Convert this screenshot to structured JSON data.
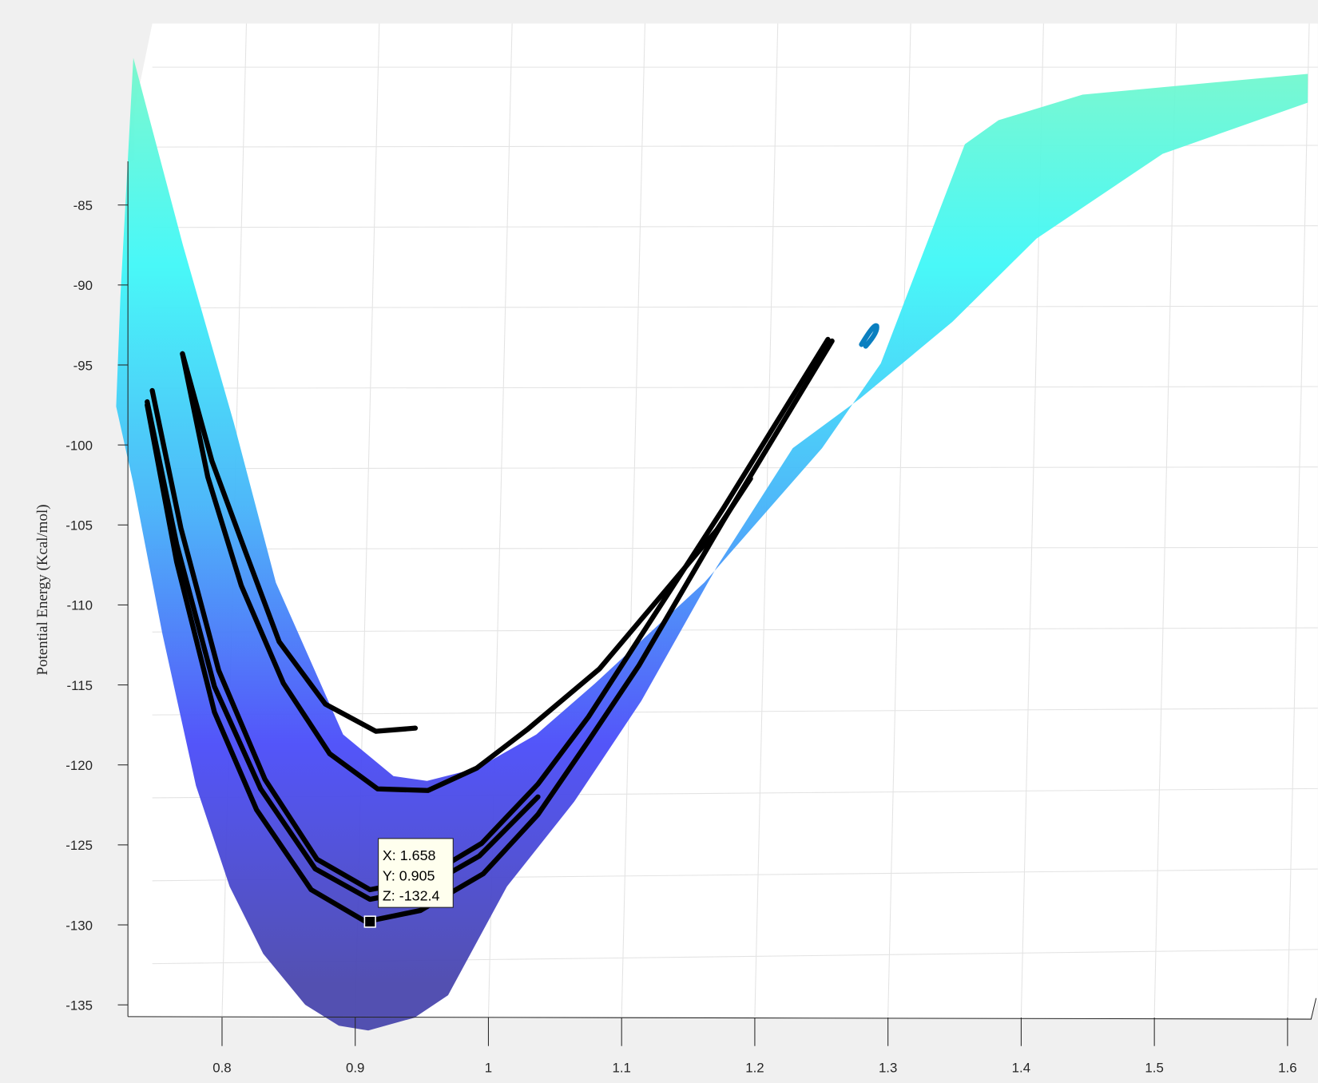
{
  "chart_data": {
    "type": "surface",
    "title": "",
    "xlabel": "",
    "ylabel": "",
    "zlabel": "Potential Energy (Kcal/mol)",
    "x_ticks": [
      "0.8",
      "0.9",
      "1",
      "1.1",
      "1.2",
      "1.3",
      "1.4",
      "1.5",
      "1.6"
    ],
    "x_tick_values": [
      0.8,
      0.9,
      1.0,
      1.1,
      1.2,
      1.3,
      1.4,
      1.5,
      1.6
    ],
    "z_ticks": [
      "-85",
      "-90",
      "-95",
      "-100",
      "-105",
      "-110",
      "-115",
      "-120",
      "-125",
      "-130",
      "-135"
    ],
    "z_tick_values": [
      -85,
      -90,
      -95,
      -100,
      -105,
      -110,
      -115,
      -120,
      -125,
      -130,
      -135
    ],
    "xlim": [
      0.73,
      1.63
    ],
    "zlim": [
      -135.5,
      -82
    ],
    "grid": true,
    "colormap": [
      "#7ff7c4",
      "#3ff8f8",
      "#45b4f9",
      "#4a4cf9",
      "#4a47ad"
    ],
    "surface_outline": [
      [
        0.7334,
        -75.8
      ],
      [
        0.7706,
        -87.5
      ],
      [
        0.8088,
        -98.6
      ],
      [
        0.8404,
        -108.6
      ],
      [
        0.8909,
        -118.1
      ],
      [
        0.9287,
        -120.7
      ],
      [
        0.9539,
        -121.0
      ],
      [
        0.9918,
        -120.2
      ],
      [
        1.036,
        -118.1
      ],
      [
        1.0801,
        -114.9
      ],
      [
        1.1621,
        -108.6
      ],
      [
        1.2505,
        -100.2
      ],
      [
        1.2946,
        -94.9
      ],
      [
        1.3577,
        -81.2
      ],
      [
        1.383,
        -79.7
      ],
      [
        1.4461,
        -78.1
      ],
      [
        1.6152,
        -76.8
      ],
      [
        1.6152,
        -78.6
      ],
      [
        1.5062,
        -81.8
      ],
      [
        1.4115,
        -87.1
      ],
      [
        1.3484,
        -92.3
      ],
      [
        1.279,
        -97.1
      ],
      [
        1.2285,
        -100.2
      ],
      [
        1.1716,
        -107.6
      ],
      [
        1.1148,
        -116.0
      ],
      [
        1.0644,
        -122.3
      ],
      [
        1.0139,
        -127.6
      ],
      [
        0.9697,
        -134.4
      ],
      [
        0.9445,
        -135.8
      ],
      [
        0.9098,
        -136.6
      ],
      [
        0.8877,
        -136.3
      ],
      [
        0.8625,
        -135.0
      ],
      [
        0.8309,
        -131.8
      ],
      [
        0.8057,
        -127.6
      ],
      [
        0.7804,
        -121.3
      ],
      [
        0.7552,
        -111.8
      ],
      [
        0.7331,
        -102.3
      ],
      [
        0.7205,
        -97.6
      ],
      [
        0.7237,
        -90.7
      ]
    ],
    "trajectories": [
      {
        "points": [
          [
            0.7703,
            -94.3
          ],
          [
            0.7924,
            -101.0
          ],
          [
            0.8177,
            -106.7
          ],
          [
            0.8429,
            -112.3
          ],
          [
            0.8776,
            -116.2
          ],
          [
            0.9155,
            -117.9
          ],
          [
            0.9451,
            -117.7
          ]
        ]
      },
      {
        "points": [
          [
            0.7703,
            -94.3
          ],
          [
            0.7893,
            -102.0
          ],
          [
            0.8145,
            -108.8
          ],
          [
            0.8461,
            -114.9
          ],
          [
            0.8808,
            -119.3
          ],
          [
            0.9168,
            -121.5
          ],
          [
            0.9546,
            -121.6
          ],
          [
            0.9912,
            -120.2
          ],
          [
            1.029,
            -117.8
          ],
          [
            1.0833,
            -114.0
          ],
          [
            1.1716,
            -105.3
          ],
          [
            1.1968,
            -102.1
          ]
        ]
      },
      {
        "points": [
          [
            0.7476,
            -96.6
          ],
          [
            0.7691,
            -105.2
          ],
          [
            0.7975,
            -114.1
          ],
          [
            0.8322,
            -120.9
          ],
          [
            0.8713,
            -125.9
          ],
          [
            0.9111,
            -127.8
          ],
          [
            0.9489,
            -127.2
          ],
          [
            0.995,
            -124.9
          ],
          [
            1.0372,
            -121.2
          ],
          [
            1.0751,
            -117.0
          ],
          [
            1.1761,
            -104.0
          ],
          [
            1.2549,
            -93.4
          ]
        ]
      },
      {
        "points": [
          [
            0.7438,
            -97.3
          ],
          [
            0.7659,
            -106.2
          ],
          [
            0.7943,
            -115.1
          ],
          [
            0.829,
            -121.5
          ],
          [
            0.87,
            -126.5
          ],
          [
            0.9111,
            -128.4
          ],
          [
            0.9489,
            -127.8
          ],
          [
            0.9931,
            -125.7
          ],
          [
            1.0372,
            -122.0
          ]
        ]
      },
      {
        "points": [
          [
            0.7438,
            -97.5
          ],
          [
            0.7659,
            -107.3
          ],
          [
            0.7943,
            -116.7
          ],
          [
            0.8259,
            -122.8
          ],
          [
            0.8669,
            -127.8
          ],
          [
            0.9079,
            -129.8
          ],
          [
            0.9489,
            -129.1
          ],
          [
            0.9962,
            -126.8
          ],
          [
            1.0372,
            -123.1
          ],
          [
            1.0751,
            -118.5
          ],
          [
            1.1129,
            -113.8
          ],
          [
            1.176,
            -104.8
          ],
          [
            1.258,
            -93.5
          ]
        ]
      }
    ],
    "datatip": {
      "x": "X: 1.658",
      "y": "Y: 0.905",
      "z": "Z: -132.4",
      "marker": [
        0.9111,
        -129.8
      ]
    }
  }
}
